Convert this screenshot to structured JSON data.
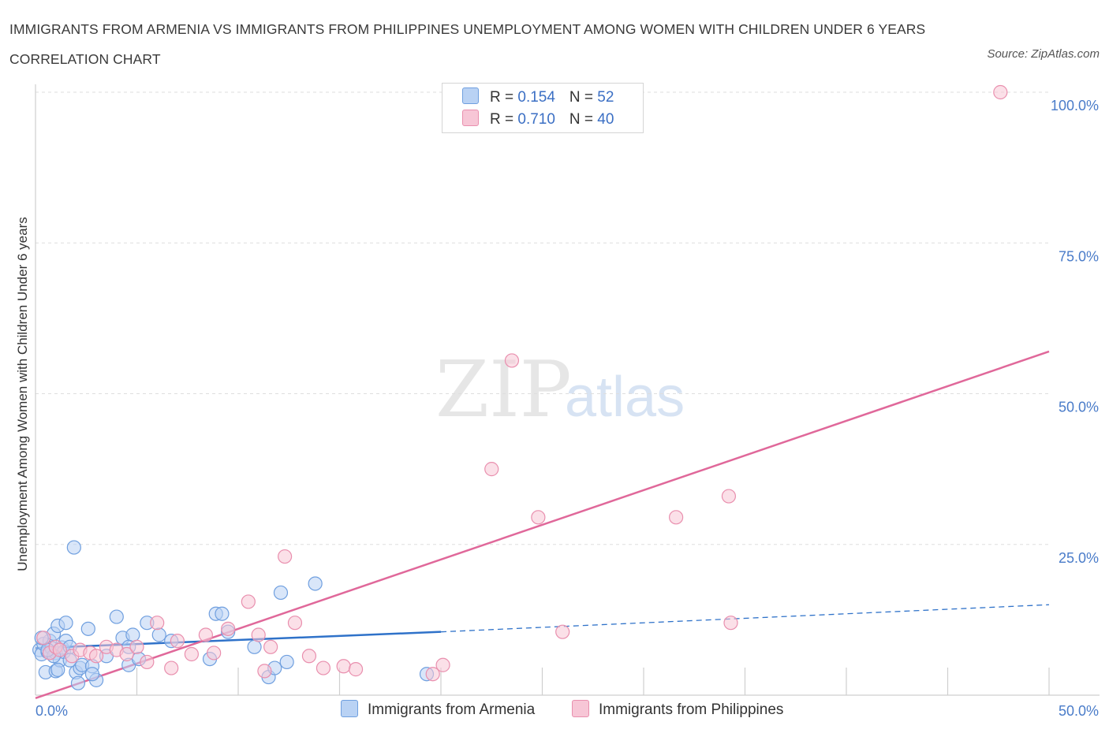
{
  "title": "IMMIGRANTS FROM ARMENIA VS IMMIGRANTS FROM PHILIPPINES UNEMPLOYMENT AMONG WOMEN WITH CHILDREN UNDER 6 YEARS CORRELATION CHART",
  "source": "Source: ZipAtlas.com",
  "watermark": {
    "zip": "ZIP",
    "atlas": "atlas"
  },
  "colors": {
    "armenia": "#6f9fdf",
    "armenia_fill": "#b9d2f4",
    "armenia_line": "#2f72c9",
    "philippines": "#e98fae",
    "philippines_fill": "#f7c6d6",
    "philippines_line": "#e0689a"
  },
  "legend": {
    "armenia": {
      "r_label": "R = ",
      "r_value": "0.154",
      "n_label": "N = ",
      "n_value": "52"
    },
    "philippines": {
      "r_label": "R = ",
      "r_value": "0.710",
      "n_label": "N = ",
      "n_value": "40"
    }
  },
  "chart_data": {
    "type": "scatter",
    "title": "IMMIGRANTS FROM ARMENIA VS IMMIGRANTS FROM PHILIPPINES UNEMPLOYMENT AMONG WOMEN WITH CHILDREN UNDER 6 YEARS CORRELATION CHART",
    "ylabel": "Unemployment Among Women with Children Under 6 years",
    "xlabel": "",
    "xlim": [
      0,
      50
    ],
    "ylim": [
      0,
      100
    ],
    "x_tick_labels": [
      "0.0%",
      "50.0%"
    ],
    "y_ticks": [
      25,
      50,
      75,
      100
    ],
    "y_tick_labels": [
      "25.0%",
      "50.0%",
      "75.0%",
      "100.0%"
    ],
    "grid": true,
    "legend_position": "top-center",
    "series": [
      {
        "name": "Immigrants from Armenia",
        "R": 0.154,
        "N": 52,
        "trend": {
          "x0": 0,
          "y0": 7.8,
          "x1": 20,
          "y1": 10.5,
          "dashed_to_x": 50,
          "dashed_to_y": 15.0
        },
        "points": [
          [
            0.2,
            7.5
          ],
          [
            0.3,
            6.8
          ],
          [
            0.4,
            8.5
          ],
          [
            0.5,
            3.8
          ],
          [
            0.6,
            7.2
          ],
          [
            0.7,
            9.0
          ],
          [
            0.8,
            7.8
          ],
          [
            0.9,
            10.2
          ],
          [
            1.0,
            4.0
          ],
          [
            1.0,
            7.0
          ],
          [
            1.1,
            11.5
          ],
          [
            1.2,
            5.8
          ],
          [
            1.3,
            7.9
          ],
          [
            1.4,
            7.2
          ],
          [
            1.5,
            9.0
          ],
          [
            1.5,
            12.0
          ],
          [
            1.7,
            8.0
          ],
          [
            1.9,
            24.5
          ],
          [
            2.0,
            3.8
          ],
          [
            2.1,
            2.0
          ],
          [
            2.2,
            4.5
          ],
          [
            2.3,
            5.0
          ],
          [
            2.6,
            11.0
          ],
          [
            2.8,
            4.8
          ],
          [
            3.0,
            2.5
          ],
          [
            3.5,
            6.5
          ],
          [
            4.0,
            13.0
          ],
          [
            4.3,
            9.5
          ],
          [
            4.6,
            5.0
          ],
          [
            4.8,
            10.0
          ],
          [
            5.1,
            6.0
          ],
          [
            5.5,
            12.0
          ],
          [
            6.1,
            10.0
          ],
          [
            6.7,
            9.0
          ],
          [
            8.6,
            6.0
          ],
          [
            8.9,
            13.5
          ],
          [
            9.2,
            13.5
          ],
          [
            9.5,
            10.5
          ],
          [
            10.8,
            8.0
          ],
          [
            11.5,
            3.0
          ],
          [
            11.8,
            4.5
          ],
          [
            12.1,
            17.0
          ],
          [
            12.4,
            5.5
          ],
          [
            13.8,
            18.5
          ],
          [
            19.3,
            3.5
          ],
          [
            0.3,
            9.5
          ],
          [
            0.9,
            6.5
          ],
          [
            1.7,
            5.8
          ],
          [
            2.8,
            3.5
          ],
          [
            4.6,
            8.0
          ],
          [
            0.6,
            7.5
          ],
          [
            1.1,
            4.2
          ]
        ]
      },
      {
        "name": "Immigrants from Philippines",
        "R": 0.71,
        "N": 40,
        "trend": {
          "x0": 0,
          "y0": -0.5,
          "x1": 50,
          "y1": 57.0
        },
        "points": [
          [
            0.4,
            9.5
          ],
          [
            0.7,
            7.0
          ],
          [
            1.0,
            8.0
          ],
          [
            1.2,
            7.5
          ],
          [
            1.8,
            6.5
          ],
          [
            2.2,
            7.5
          ],
          [
            2.7,
            7.0
          ],
          [
            3.0,
            6.5
          ],
          [
            3.5,
            8.0
          ],
          [
            4.0,
            7.5
          ],
          [
            4.5,
            6.8
          ],
          [
            5.0,
            8.0
          ],
          [
            5.5,
            5.5
          ],
          [
            6.0,
            12.0
          ],
          [
            6.7,
            4.5
          ],
          [
            7.0,
            9.0
          ],
          [
            7.7,
            6.8
          ],
          [
            8.4,
            10.0
          ],
          [
            8.8,
            7.0
          ],
          [
            9.5,
            11.0
          ],
          [
            10.5,
            15.5
          ],
          [
            11.0,
            10.0
          ],
          [
            11.3,
            4.0
          ],
          [
            11.6,
            8.0
          ],
          [
            12.3,
            23.0
          ],
          [
            12.8,
            12.0
          ],
          [
            13.5,
            6.5
          ],
          [
            14.2,
            4.5
          ],
          [
            15.2,
            4.8
          ],
          [
            15.8,
            4.3
          ],
          [
            19.6,
            3.5
          ],
          [
            20.1,
            5.0
          ],
          [
            22.5,
            37.5
          ],
          [
            23.5,
            55.5
          ],
          [
            24.8,
            29.5
          ],
          [
            26.0,
            10.5
          ],
          [
            31.6,
            29.5
          ],
          [
            34.2,
            33.0
          ],
          [
            34.3,
            12.0
          ],
          [
            47.6,
            100.0
          ]
        ]
      }
    ]
  }
}
